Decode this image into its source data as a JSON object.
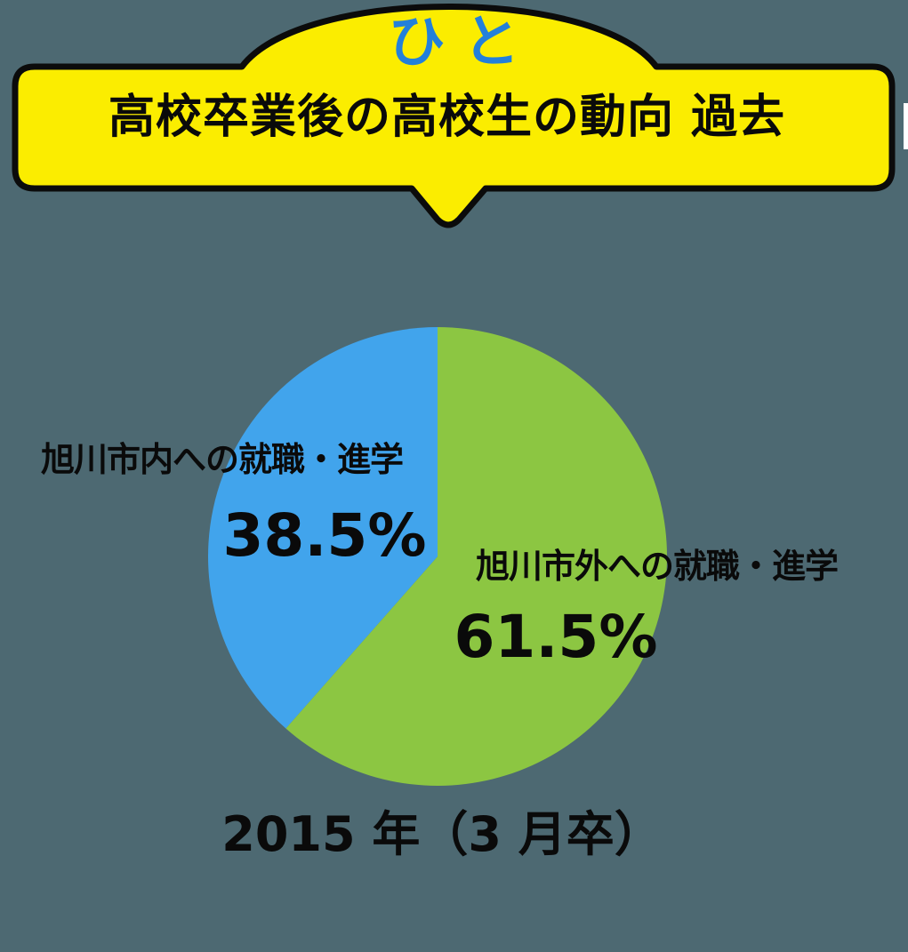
{
  "banner": {
    "tab_label": "ひと",
    "title": "高校卒業後の高校生の動向 過去",
    "fill_color": "#fbed00",
    "border_color": "#0b0b0b",
    "tab_text_color": "#2380da"
  },
  "background_color": "#4d6972",
  "chart_data": {
    "type": "pie",
    "title": "高校卒業後の高校生の動向 過去",
    "caption": "2015 年（3 月卒）",
    "start_angle_deg": 0,
    "direction": "clockwise",
    "legend_position": "labels-on-chart",
    "slices": [
      {
        "id": "outside-city",
        "label": "旭川市外への就職・進学",
        "value": 61.5,
        "display": "61.5%",
        "color": "#8cc642"
      },
      {
        "id": "inside-city",
        "label": "旭川市内への就職・進学",
        "value": 38.5,
        "display": "38.5%",
        "color": "#41a4ec"
      }
    ]
  }
}
